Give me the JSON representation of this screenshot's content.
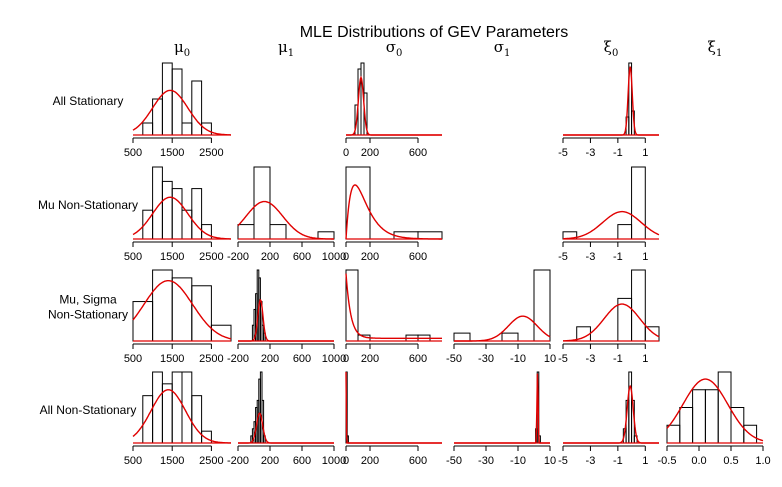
{
  "title": "MLE Distributions of GEV Parameters",
  "columns": [
    {
      "key": "mu0",
      "sym": "μ",
      "sub": "0"
    },
    {
      "key": "mu1",
      "sym": "μ",
      "sub": "1"
    },
    {
      "key": "sigma0",
      "sym": "σ",
      "sub": "0"
    },
    {
      "key": "sigma1",
      "sym": "σ",
      "sub": "1"
    },
    {
      "key": "xi0",
      "sym": "ξ",
      "sub": "0"
    },
    {
      "key": "xi1",
      "sym": "ξ",
      "sub": "1"
    }
  ],
  "rows": [
    {
      "label_lines": [
        "All Stationary"
      ]
    },
    {
      "label_lines": [
        "Mu Non-Stationary"
      ]
    },
    {
      "label_lines": [
        "Mu, Sigma",
        "Non-Stationary"
      ]
    },
    {
      "label_lines": [
        "All Non-Stationary"
      ]
    }
  ],
  "colors": {
    "hist": "#000000",
    "density": "#e00000",
    "background": "#ffffff"
  },
  "chart_data": {
    "type": "histogram-grid",
    "title": "MLE Distributions of GEV Parameters",
    "axes": {
      "mu0": {
        "range": [
          500,
          3000
        ],
        "ticks": [
          500,
          1500,
          2500
        ]
      },
      "mu1": {
        "range": [
          -200,
          1000
        ],
        "ticks": [
          -200,
          200,
          600,
          1000
        ]
      },
      "sigma0": {
        "range": [
          0,
          800
        ],
        "ticks": [
          0,
          200,
          600
        ]
      },
      "sigma1": {
        "range": [
          -50,
          10
        ],
        "ticks": [
          -50,
          -30,
          -10,
          10
        ]
      },
      "xi0": {
        "range": [
          -5,
          2
        ],
        "ticks": [
          -5,
          -3,
          -1,
          1
        ]
      },
      "xi1": {
        "range": [
          -0.5,
          1.0
        ],
        "ticks": [
          -0.5,
          0.0,
          0.5,
          1.0
        ]
      }
    },
    "panels": [
      {
        "row": 0,
        "col": "mu0",
        "breaks": [
          750,
          1000,
          1250,
          1500,
          1750,
          2000,
          2250,
          2500
        ],
        "counts": [
          2,
          6,
          12,
          11,
          2,
          9,
          2
        ],
        "max": 12,
        "density": {
          "type": "normal",
          "mean": 1450,
          "sd": 450,
          "peak": 0.62
        }
      },
      {
        "row": 0,
        "col": "sigma0",
        "breaks": [
          75,
          100,
          125,
          150,
          175
        ],
        "counts": [
          5,
          11,
          12,
          7
        ],
        "max": 12,
        "density": {
          "type": "normal",
          "mean": 125,
          "sd": 22,
          "peak": 0.8
        }
      },
      {
        "row": 0,
        "col": "xi0",
        "breaks": [
          -0.4,
          -0.2,
          0.0,
          0.2
        ],
        "counts": [
          3,
          12,
          4
        ],
        "max": 12,
        "density": {
          "type": "normal",
          "mean": -0.1,
          "sd": 0.15,
          "peak": 0.95
        }
      },
      {
        "row": 1,
        "col": "mu0",
        "breaks": [
          750,
          1000,
          1250,
          1500,
          1750,
          2000,
          2250,
          2500
        ],
        "counts": [
          4,
          10,
          8,
          7,
          4,
          7,
          2
        ],
        "max": 10,
        "density": {
          "type": "normal",
          "mean": 1450,
          "sd": 450,
          "peak": 0.58
        }
      },
      {
        "row": 1,
        "col": "mu1",
        "breaks": [
          -200,
          0,
          200,
          400,
          600,
          800,
          1000
        ],
        "counts": [
          2,
          10,
          2,
          0,
          0,
          1
        ],
        "max": 10,
        "density": {
          "type": "normal",
          "mean": 130,
          "sd": 230,
          "peak": 0.52
        }
      },
      {
        "row": 1,
        "col": "sigma0",
        "breaks": [
          0,
          200,
          400,
          600,
          800
        ],
        "counts": [
          10,
          0,
          1,
          1
        ],
        "max": 10,
        "density": {
          "type": "gamma",
          "shape": 2,
          "scale": 75,
          "peak": 0.75
        }
      },
      {
        "row": 1,
        "col": "xi0",
        "breaks": [
          -5,
          -4,
          -3,
          -2,
          -1,
          0,
          1
        ],
        "counts": [
          1,
          0,
          0,
          0,
          2,
          10
        ],
        "max": 10,
        "density": {
          "type": "normal",
          "mean": -0.7,
          "sd": 1.4,
          "peak": 0.38
        }
      },
      {
        "row": 2,
        "col": "mu0",
        "breaks": [
          500,
          1000,
          1500,
          2000,
          2500,
          3000
        ],
        "counts": [
          5,
          9,
          8,
          7,
          2
        ],
        "max": 9,
        "density": {
          "type": "normal",
          "mean": 1400,
          "sd": 620,
          "peak": 0.85
        }
      },
      {
        "row": 2,
        "col": "mu1",
        "breaks": [
          -20,
          0,
          20,
          40,
          60,
          80,
          100,
          120,
          140
        ],
        "counts": [
          2,
          4,
          6,
          9,
          8,
          5,
          2,
          1
        ],
        "max": 9,
        "density": {
          "type": "normal",
          "mean": 80,
          "sd": 32,
          "peak": 0.58
        }
      },
      {
        "row": 2,
        "col": "sigma0",
        "breaks": [
          0,
          100,
          200,
          300,
          400,
          500,
          600,
          700,
          800
        ],
        "counts": [
          12,
          1,
          0,
          0,
          0,
          1,
          1,
          0
        ],
        "max": 12,
        "density": {
          "type": "decay",
          "rate": 0.025,
          "floor": 0.04,
          "peak": 0.95
        }
      },
      {
        "row": 2,
        "col": "sigma1",
        "breaks": [
          -50,
          -40,
          -30,
          -20,
          -10,
          0,
          10
        ],
        "counts": [
          1,
          0,
          0,
          1,
          0,
          9
        ],
        "max": 9,
        "density": {
          "type": "normal",
          "mean": -7,
          "sd": 9,
          "peak": 0.35
        }
      },
      {
        "row": 2,
        "col": "xi0",
        "breaks": [
          -5,
          -4,
          -3,
          -2,
          -1,
          0,
          1,
          2
        ],
        "counts": [
          0,
          1,
          0,
          0,
          3,
          5,
          1
        ],
        "max": 5,
        "density": {
          "type": "normal",
          "mean": -0.7,
          "sd": 1.3,
          "peak": 0.52
        }
      },
      {
        "row": 3,
        "col": "mu0",
        "breaks": [
          750,
          1000,
          1250,
          1500,
          1750,
          2000,
          2250,
          2500
        ],
        "counts": [
          4,
          6,
          5,
          6,
          6,
          4,
          1
        ],
        "max": 6,
        "density": {
          "type": "normal",
          "mean": 1400,
          "sd": 440,
          "peak": 0.75
        }
      },
      {
        "row": 3,
        "col": "mu1",
        "breaks": [
          -40,
          -20,
          0,
          20,
          40,
          60,
          80,
          100,
          120,
          140
        ],
        "counts": [
          1,
          2,
          3,
          5,
          6,
          9,
          10,
          6,
          1
        ],
        "max": 10,
        "density": {
          "type": "normal",
          "mean": 70,
          "sd": 38,
          "peak": 0.42
        }
      },
      {
        "row": 3,
        "col": "sigma0",
        "breaks": [
          0,
          10,
          20
        ],
        "counts": [
          10,
          1
        ],
        "max": 10,
        "density": {
          "type": "decay",
          "rate": 0.5,
          "floor": 0.0,
          "peak": 1.0
        }
      },
      {
        "row": 3,
        "col": "sigma1",
        "breaks": [
          1,
          2,
          3,
          4
        ],
        "counts": [
          2,
          10,
          1
        ],
        "max": 10,
        "density": {
          "type": "normal",
          "mean": 2.2,
          "sd": 0.35,
          "peak": 1.0
        }
      },
      {
        "row": 3,
        "col": "xi0",
        "breaks": [
          -0.6,
          -0.4,
          -0.2,
          0.0,
          0.2,
          0.4
        ],
        "counts": [
          2,
          6,
          10,
          6,
          1
        ],
        "max": 10,
        "density": {
          "type": "normal",
          "mean": -0.1,
          "sd": 0.22,
          "peak": 0.8
        }
      },
      {
        "row": 3,
        "col": "xi1",
        "breaks": [
          -0.5,
          -0.3,
          -0.1,
          0.1,
          0.3,
          0.5,
          0.7,
          0.9
        ],
        "counts": [
          1,
          2,
          3,
          3,
          4,
          2,
          1
        ],
        "max": 4,
        "density": {
          "type": "normal",
          "mean": 0.1,
          "sd": 0.35,
          "peak": 0.9
        }
      }
    ]
  }
}
